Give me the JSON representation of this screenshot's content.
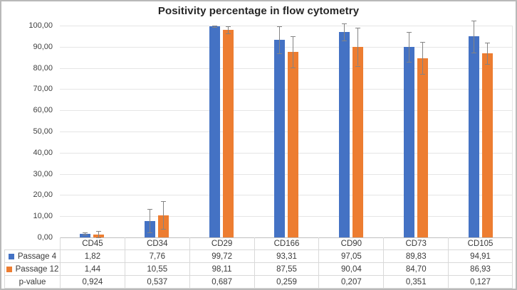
{
  "frame": {
    "background": "#ffffff",
    "border_color": "#b9b9b9"
  },
  "chart_data": {
    "type": "bar",
    "title": "Positivity percentage in flow cytometry",
    "categories": [
      "CD45",
      "CD34",
      "CD29",
      "CD166",
      "CD90",
      "CD73",
      "CD105"
    ],
    "series": [
      {
        "name": "Passage 4",
        "color": "#4472C4",
        "values": [
          1.82,
          7.76,
          99.72,
          93.31,
          97.05,
          89.83,
          94.91
        ],
        "errors": [
          0.5,
          5.5,
          0.3,
          6.3,
          4.0,
          7.0,
          7.5
        ]
      },
      {
        "name": "Passage 12",
        "color": "#ED7D31",
        "values": [
          1.44,
          10.55,
          98.11,
          87.55,
          90.04,
          84.7,
          86.93
        ],
        "errors": [
          1.5,
          6.5,
          1.7,
          7.5,
          9.0,
          7.5,
          5.0
        ]
      }
    ],
    "p_values": [
      0.924,
      0.537,
      0.687,
      0.259,
      0.207,
      0.351,
      0.127
    ],
    "ylim": [
      0,
      100
    ],
    "ytick_step": 10,
    "ytick_labels": [
      "0,00",
      "10,00",
      "20,00",
      "30,00",
      "40,00",
      "50,00",
      "60,00",
      "70,00",
      "80,00",
      "90,00",
      "100,00"
    ],
    "grid": true,
    "legend_position": "data-table",
    "error_bars": true,
    "gridline_color": "#e5e5e5",
    "axis_line_color": "#bfbfbf",
    "error_bar_color": "#848484"
  },
  "table": {
    "columns": [
      "CD45",
      "CD34",
      "CD29",
      "CD166",
      "CD90",
      "CD73",
      "CD105"
    ],
    "rows": [
      {
        "label": "Passage 4",
        "marker_color": "#4472C4",
        "cells": [
          "1,82",
          "7,76",
          "99,72",
          "93,31",
          "97,05",
          "89,83",
          "94,91"
        ]
      },
      {
        "label": "Passage 12",
        "marker_color": "#ED7D31",
        "cells": [
          "1,44",
          "10,55",
          "98,11",
          "87,55",
          "90,04",
          "84,70",
          "86,93"
        ]
      },
      {
        "label": "p-value",
        "marker_color": null,
        "cells": [
          "0,924",
          "0,537",
          "0,687",
          "0,259",
          "0,207",
          "0,351",
          "0,127"
        ]
      }
    ]
  }
}
